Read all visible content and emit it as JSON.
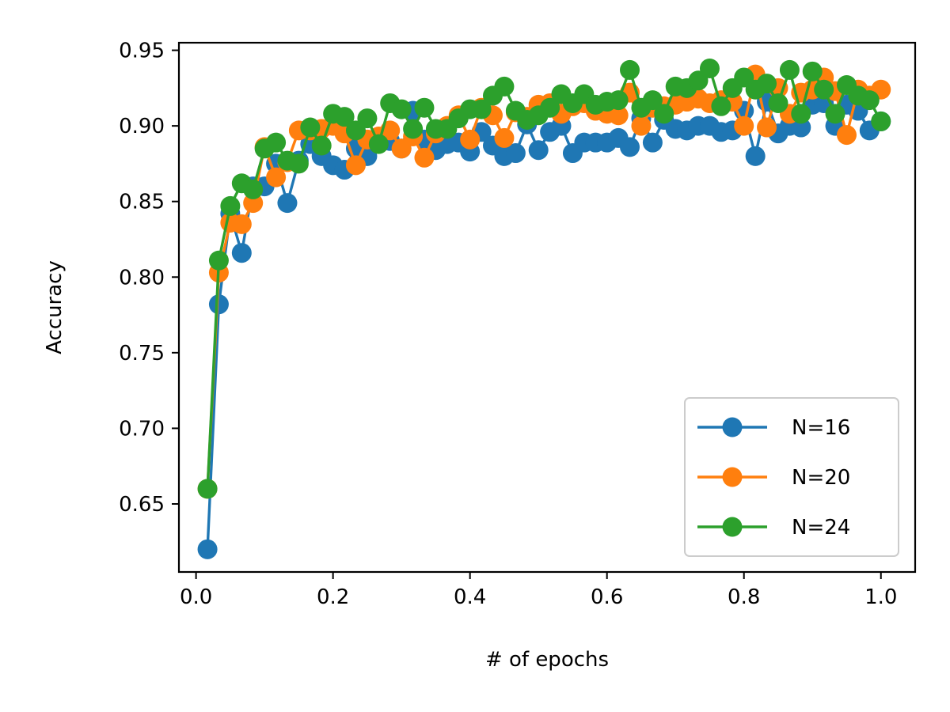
{
  "chart_data": {
    "type": "line",
    "title": "",
    "xlabel": "# of epochs",
    "ylabel": "Accuracy",
    "xlim": [
      -0.025,
      1.05
    ],
    "ylim": [
      0.605,
      0.955
    ],
    "xticks": [
      0.0,
      0.2,
      0.4,
      0.6,
      0.8,
      1.0
    ],
    "xtick_labels": [
      "0.0",
      "0.2",
      "0.4",
      "0.6",
      "0.8",
      "1.0"
    ],
    "yticks": [
      0.65,
      0.7,
      0.75,
      0.8,
      0.85,
      0.9,
      0.95
    ],
    "ytick_labels": [
      "0.65",
      "0.70",
      "0.75",
      "0.80",
      "0.85",
      "0.90",
      "0.95"
    ],
    "grid": false,
    "legend_position": "lower-right",
    "x": [
      0.0167,
      0.0333,
      0.05,
      0.0667,
      0.0833,
      0.1,
      0.1167,
      0.1333,
      0.15,
      0.1667,
      0.1833,
      0.2,
      0.2167,
      0.2333,
      0.25,
      0.2667,
      0.2833,
      0.3,
      0.3167,
      0.3333,
      0.35,
      0.3667,
      0.3833,
      0.4,
      0.4167,
      0.4333,
      0.45,
      0.4667,
      0.4833,
      0.5,
      0.5167,
      0.5333,
      0.55,
      0.5667,
      0.5833,
      0.6,
      0.6167,
      0.6333,
      0.65,
      0.6667,
      0.6833,
      0.7,
      0.7167,
      0.7333,
      0.75,
      0.7667,
      0.7833,
      0.8,
      0.8167,
      0.8333,
      0.85,
      0.8667,
      0.8833,
      0.9,
      0.9167,
      0.9333,
      0.95,
      0.9667,
      0.9833,
      1.0
    ],
    "series": [
      {
        "name": "N=16",
        "color": "#1f77b4",
        "values": [
          0.62,
          0.782,
          0.842,
          0.816,
          0.86,
          0.86,
          0.875,
          0.849,
          0.877,
          0.888,
          0.88,
          0.874,
          0.871,
          0.885,
          0.88,
          0.89,
          0.89,
          0.885,
          0.91,
          0.891,
          0.884,
          0.888,
          0.889,
          0.883,
          0.896,
          0.887,
          0.88,
          0.882,
          0.901,
          0.884,
          0.896,
          0.9,
          0.882,
          0.889,
          0.889,
          0.889,
          0.892,
          0.886,
          0.905,
          0.889,
          0.904,
          0.898,
          0.897,
          0.9,
          0.9,
          0.896,
          0.897,
          0.91,
          0.88,
          0.916,
          0.895,
          0.9,
          0.899,
          0.914,
          0.915,
          0.9,
          0.914,
          0.91,
          0.897,
          0.903
        ]
      },
      {
        "name": "N=20",
        "color": "#ff7f0e",
        "values": [
          0.66,
          0.803,
          0.836,
          0.835,
          0.849,
          0.886,
          0.866,
          0.876,
          0.897,
          0.897,
          0.898,
          0.9,
          0.895,
          0.874,
          0.891,
          0.893,
          0.897,
          0.885,
          0.893,
          0.879,
          0.895,
          0.9,
          0.907,
          0.891,
          0.912,
          0.907,
          0.892,
          0.909,
          0.906,
          0.914,
          0.915,
          0.908,
          0.913,
          0.915,
          0.91,
          0.908,
          0.907,
          0.922,
          0.9,
          0.912,
          0.913,
          0.914,
          0.916,
          0.918,
          0.915,
          0.917,
          0.916,
          0.9,
          0.934,
          0.899,
          0.925,
          0.908,
          0.922,
          0.924,
          0.932,
          0.923,
          0.894,
          0.924,
          0.92,
          0.924
        ]
      },
      {
        "name": "N=24",
        "color": "#2ca02c",
        "values": [
          0.66,
          0.811,
          0.847,
          0.862,
          0.858,
          0.885,
          0.889,
          0.877,
          0.875,
          0.899,
          0.887,
          0.908,
          0.906,
          0.897,
          0.905,
          0.888,
          0.915,
          0.911,
          0.898,
          0.912,
          0.898,
          0.898,
          0.905,
          0.911,
          0.911,
          0.92,
          0.926,
          0.91,
          0.904,
          0.907,
          0.912,
          0.921,
          0.915,
          0.921,
          0.914,
          0.916,
          0.917,
          0.937,
          0.912,
          0.917,
          0.908,
          0.926,
          0.925,
          0.93,
          0.938,
          0.913,
          0.925,
          0.932,
          0.924,
          0.928,
          0.915,
          0.937,
          0.908,
          0.936,
          0.924,
          0.908,
          0.927,
          0.92,
          0.917,
          0.903
        ]
      }
    ]
  }
}
